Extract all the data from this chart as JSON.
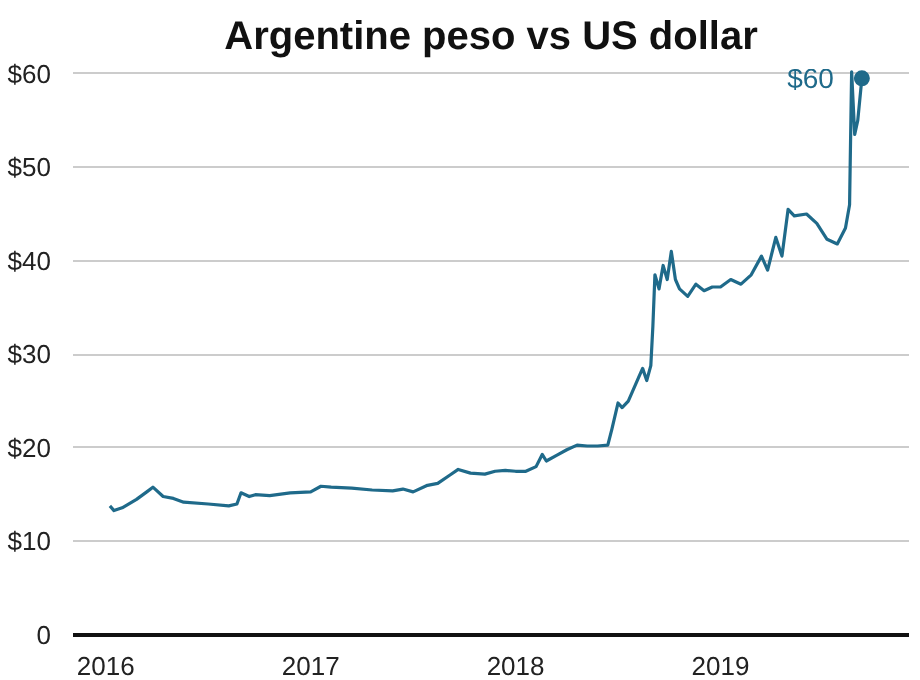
{
  "chart_data": {
    "type": "line",
    "title": "Argentine peso vs US dollar",
    "x": [
      2016.02,
      2016.04,
      2016.08,
      2016.15,
      2016.2,
      2016.23,
      2016.28,
      2016.33,
      2016.38,
      2016.5,
      2016.6,
      2016.64,
      2016.66,
      2016.7,
      2016.73,
      2016.8,
      2016.9,
      2017.0,
      2017.05,
      2017.1,
      2017.2,
      2017.3,
      2017.4,
      2017.45,
      2017.5,
      2017.57,
      2017.62,
      2017.68,
      2017.72,
      2017.78,
      2017.85,
      2017.9,
      2017.95,
      2018.0,
      2018.05,
      2018.1,
      2018.13,
      2018.15,
      2018.2,
      2018.25,
      2018.3,
      2018.35,
      2018.4,
      2018.45,
      2018.47,
      2018.5,
      2018.52,
      2018.55,
      2018.6,
      2018.62,
      2018.64,
      2018.66,
      2018.67,
      2018.68,
      2018.7,
      2018.72,
      2018.74,
      2018.76,
      2018.78,
      2018.8,
      2018.84,
      2018.88,
      2018.92,
      2018.96,
      2019.0,
      2019.05,
      2019.1,
      2019.15,
      2019.2,
      2019.23,
      2019.27,
      2019.3,
      2019.33,
      2019.36,
      2019.42,
      2019.47,
      2019.52,
      2019.57,
      2019.61,
      2019.63,
      2019.64,
      2019.655,
      2019.67,
      2019.69
    ],
    "series": [
      {
        "color": "#1f6a8a",
        "values": [
          13.8,
          13.3,
          13.6,
          14.5,
          15.3,
          15.8,
          14.8,
          14.6,
          14.2,
          14.0,
          13.8,
          14.0,
          15.2,
          14.8,
          15.0,
          14.9,
          15.2,
          15.3,
          15.9,
          15.8,
          15.7,
          15.5,
          15.4,
          15.6,
          15.3,
          16.0,
          16.2,
          17.1,
          17.7,
          17.3,
          17.2,
          17.5,
          17.6,
          17.5,
          17.5,
          18.0,
          19.3,
          18.6,
          19.2,
          19.8,
          20.3,
          20.2,
          20.2,
          20.3,
          22.0,
          24.8,
          24.3,
          25.0,
          27.5,
          28.5,
          27.2,
          28.8,
          33.0,
          38.5,
          37.0,
          39.5,
          38.0,
          41.0,
          38.0,
          37.0,
          36.2,
          37.5,
          36.8,
          37.2,
          37.2,
          38.0,
          37.5,
          38.5,
          40.5,
          39.0,
          42.5,
          40.5,
          45.5,
          44.8,
          45.0,
          44.0,
          42.3,
          41.8,
          43.5,
          46.0,
          60.2,
          53.5,
          55.0,
          59.5
        ]
      }
    ],
    "xlim": [
      2015.84,
      2019.92
    ],
    "xticks": [
      2016,
      2017,
      2018,
      2019
    ],
    "ylim": [
      0,
      60.5
    ],
    "yticks": [
      {
        "value": 0,
        "label": "0"
      },
      {
        "value": 10,
        "label": "$10"
      },
      {
        "value": 20,
        "label": "$20"
      },
      {
        "value": 30,
        "label": "$30"
      },
      {
        "value": 40,
        "label": "$40"
      },
      {
        "value": 50,
        "label": "$50"
      },
      {
        "value": 60,
        "label": "$60"
      }
    ],
    "grid": "y",
    "annotations": [
      {
        "text": "$60",
        "x": 2019.69,
        "y": 59.5
      }
    ]
  }
}
